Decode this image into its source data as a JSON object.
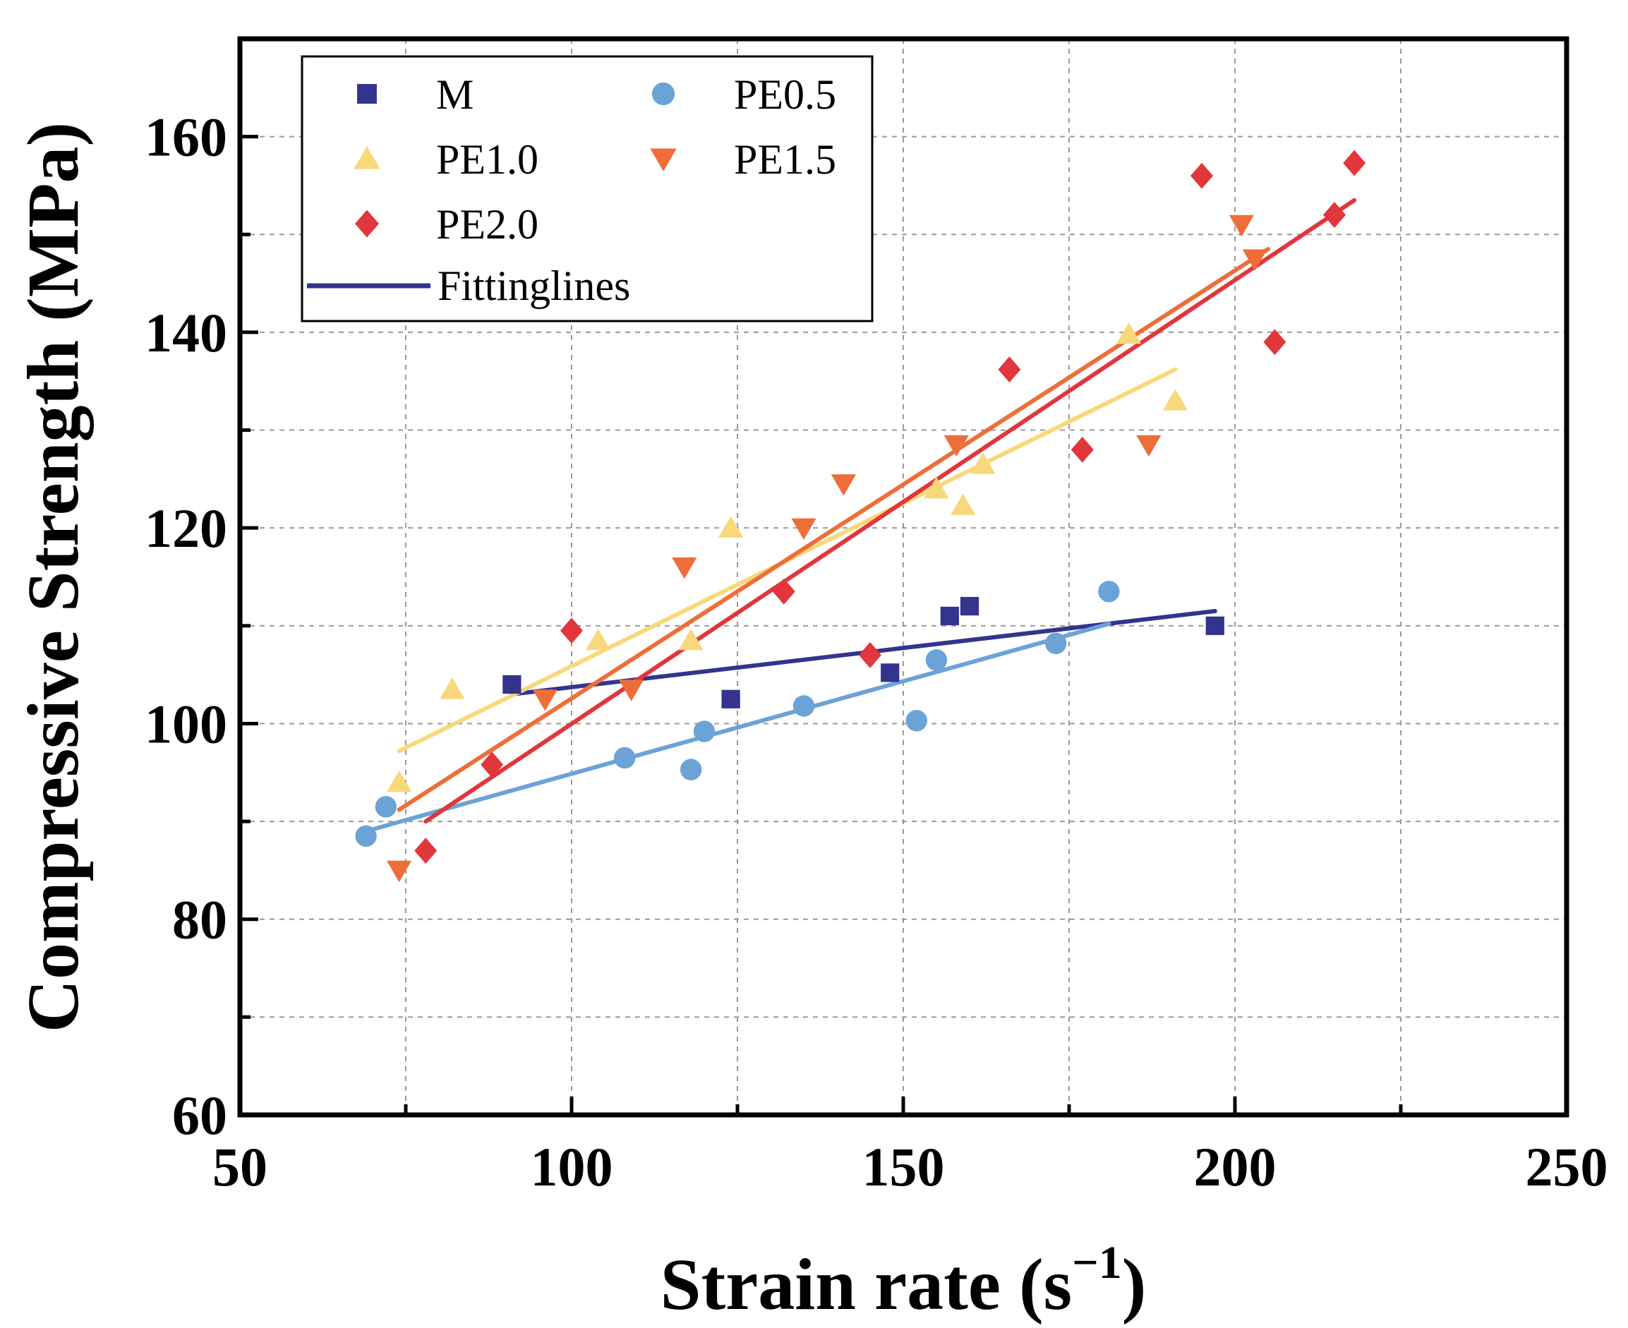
{
  "chart_data": {
    "type": "scatter",
    "title": "",
    "xlabel": "Strain rate (s",
    "xlabel_sup": "−1",
    "xlabel_close": ")",
    "ylabel": "Compressive Strength (MPa)",
    "xlim": [
      50,
      250
    ],
    "ylim": [
      60,
      170
    ],
    "xticks": [
      50,
      100,
      150,
      200,
      250
    ],
    "xtick_labels": [
      "50",
      "100",
      "150",
      "200",
      "250"
    ],
    "yticks": [
      60,
      80,
      100,
      120,
      140,
      160
    ],
    "ytick_labels": [
      "60",
      "80",
      "100",
      "120",
      "140",
      "160"
    ],
    "grid": true,
    "legend_position": "top-left",
    "fit_legend_label": "Fittinglines",
    "series": [
      {
        "name": "M",
        "marker": "square",
        "color": "#33348e",
        "x": [
          91,
          124,
          148,
          157,
          160,
          197
        ],
        "y": [
          104,
          102.5,
          105.2,
          111,
          112,
          110
        ],
        "fit": {
          "x": [
            91,
            197
          ],
          "y": [
            103,
            111.5
          ]
        }
      },
      {
        "name": "PE0.5",
        "marker": "circle",
        "color": "#6ba3d6",
        "x": [
          69,
          72,
          108,
          118,
          120,
          135,
          152,
          155,
          173,
          181
        ],
        "y": [
          88.5,
          91.5,
          96.5,
          95.3,
          99.2,
          101.8,
          100.3,
          106.5,
          108.2,
          113.5
        ],
        "fit": {
          "x": [
            69,
            181
          ],
          "y": [
            89,
            110.2
          ]
        }
      },
      {
        "name": "PE1.0",
        "marker": "triangle-up",
        "color": "#f8d87a",
        "x": [
          74,
          82,
          104,
          118,
          124,
          155,
          159,
          162,
          184,
          191
        ],
        "y": [
          94,
          103.5,
          108.5,
          108.5,
          120,
          124,
          122.3,
          126.5,
          139.8,
          133
        ],
        "fit": {
          "x": [
            74,
            191
          ],
          "y": [
            97.2,
            136.2
          ]
        }
      },
      {
        "name": "PE1.5",
        "marker": "triangle-down",
        "color": "#ee6e3a",
        "x": [
          74,
          96,
          109,
          117,
          135,
          141,
          158,
          187,
          201,
          203
        ],
        "y": [
          85,
          102.5,
          103.5,
          116,
          120,
          124.5,
          128.5,
          128.5,
          151,
          147.5
        ],
        "fit": {
          "x": [
            74,
            205
          ],
          "y": [
            91.2,
            148.5
          ]
        }
      },
      {
        "name": "PE2.0",
        "marker": "diamond",
        "color": "#e1363b",
        "x": [
          78,
          88,
          100,
          132,
          145,
          166,
          177,
          195,
          206,
          215,
          218
        ],
        "y": [
          87,
          95.8,
          109.5,
          113.5,
          107,
          136.2,
          128,
          156,
          139,
          152,
          157.3
        ],
        "fit": {
          "x": [
            78,
            218
          ],
          "y": [
            90,
            153.5
          ]
        }
      }
    ]
  }
}
